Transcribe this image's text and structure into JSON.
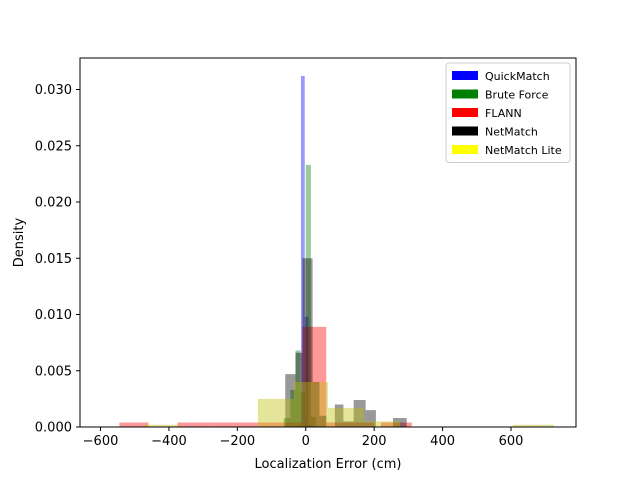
{
  "chart_data": {
    "type": "histogram",
    "xlabel": "Localization Error (cm)",
    "ylabel": "Density",
    "xlim": [
      -660,
      790
    ],
    "ylim": [
      0,
      0.0328
    ],
    "xticks": [
      -600,
      -400,
      -200,
      0,
      200,
      400,
      600
    ],
    "xtick_labels": [
      "−600",
      "−400",
      "−200",
      "0",
      "200",
      "400",
      "600"
    ],
    "yticks": [
      0.0,
      0.005,
      0.01,
      0.015,
      0.02,
      0.025,
      0.03
    ],
    "ytick_labels": [
      "0.000",
      "0.005",
      "0.010",
      "0.015",
      "0.020",
      "0.025",
      "0.030"
    ],
    "grid": false,
    "legend_position": "top-right",
    "series": [
      {
        "name": "QuickMatch",
        "color": "#0000ff",
        "alpha": 0.4,
        "bins": [
          [
            -26,
            -14,
            0.0001
          ],
          [
            -14,
            -3,
            0.0312
          ],
          [
            -3,
            8,
            0.0098
          ],
          [
            8,
            19,
            0.0002
          ]
        ]
      },
      {
        "name": "Brute Force",
        "color": "#008000",
        "alpha": 0.4,
        "bins": [
          [
            -65,
            -45,
            0.0008
          ],
          [
            -45,
            -30,
            0.0033
          ],
          [
            -30,
            -15,
            0.0068
          ],
          [
            -15,
            0,
            0.0031
          ],
          [
            0,
            15,
            0.0233
          ],
          [
            15,
            30,
            0.0009
          ]
        ]
      },
      {
        "name": "FLANN",
        "color": "#ff0000",
        "alpha": 0.4,
        "bins": [
          [
            -545,
            -460,
            0.0004
          ],
          [
            -375,
            -285,
            0.0004
          ],
          [
            -285,
            -195,
            0.0004
          ],
          [
            -195,
            -100,
            0.0004
          ],
          [
            -100,
            -10,
            0.0004
          ],
          [
            -10,
            60,
            0.0089
          ],
          [
            60,
            130,
            0.0004
          ],
          [
            130,
            200,
            0.0004
          ],
          [
            220,
            310,
            0.0004
          ]
        ]
      },
      {
        "name": "NetMatch",
        "color": "#000000",
        "alpha": 0.4,
        "bins": [
          [
            -60,
            -30,
            0.0047
          ],
          [
            -30,
            -10,
            0.0066
          ],
          [
            -10,
            20,
            0.015
          ],
          [
            20,
            40,
            0.004
          ],
          [
            40,
            60,
            0.001
          ],
          [
            85,
            110,
            0.002
          ],
          [
            110,
            140,
            0.0005
          ],
          [
            140,
            175,
            0.0024
          ],
          [
            175,
            205,
            0.0015
          ],
          [
            255,
            295,
            0.0008
          ]
        ]
      },
      {
        "name": "NetMatch Lite",
        "color": "#bfbf00",
        "alpha": 0.4,
        "bins": [
          [
            -475,
            -370,
            0.0002
          ],
          [
            -140,
            -35,
            0.0025
          ],
          [
            -35,
            65,
            0.004
          ],
          [
            65,
            170,
            0.0017
          ],
          [
            170,
            275,
            0.0005
          ],
          [
            605,
            725,
            0.0002
          ]
        ]
      }
    ],
    "legend": [
      {
        "label": "QuickMatch",
        "color": "#0000ff"
      },
      {
        "label": "Brute Force",
        "color": "#008000"
      },
      {
        "label": "FLANN",
        "color": "#ff0000"
      },
      {
        "label": "NetMatch",
        "color": "#000000"
      },
      {
        "label": "NetMatch Lite",
        "color": "#ffff00"
      }
    ]
  }
}
